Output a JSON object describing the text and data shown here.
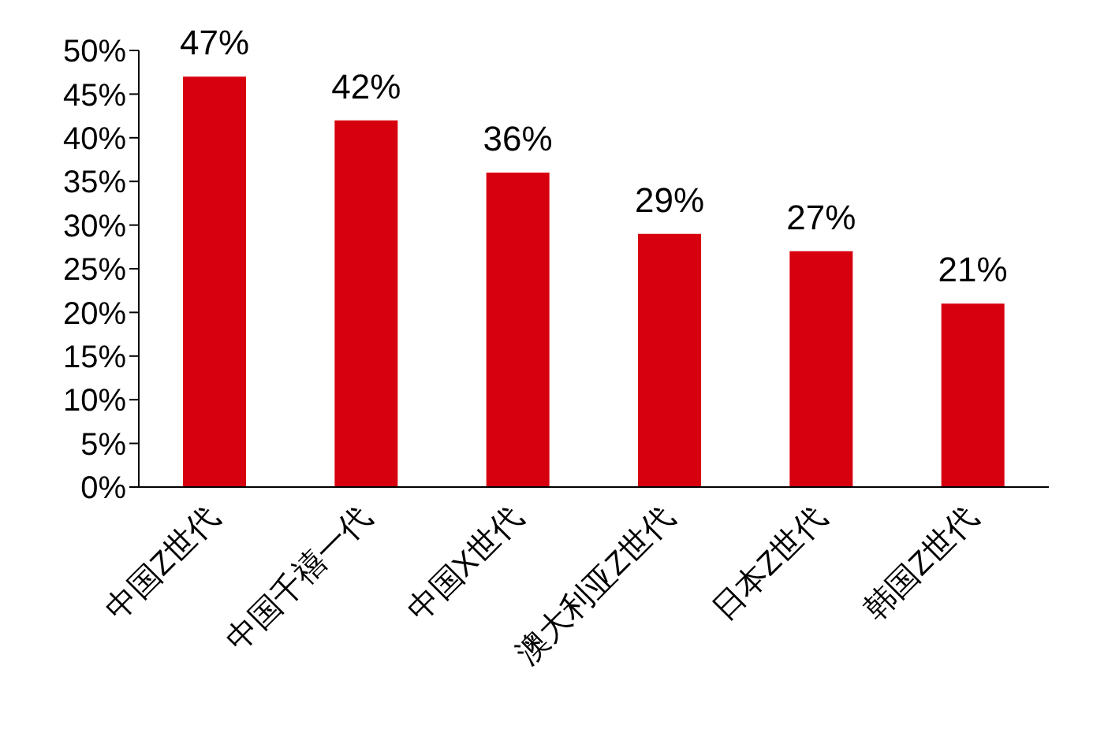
{
  "chart_data": {
    "type": "bar",
    "categories": [
      "中国Z世代",
      "中国千禧一代",
      "中国X世代",
      "澳大利亚Z世代",
      "日本Z世代",
      "韩国Z世代"
    ],
    "values": [
      47,
      42,
      36,
      29,
      27,
      21
    ],
    "color": "#d7000f",
    "value_labels": [
      "47%",
      "42%",
      "36%",
      "29%",
      "27%",
      "21%"
    ],
    "ylim": [
      0,
      50
    ],
    "yticks": [
      {
        "value": 0,
        "label": "0%"
      },
      {
        "value": 5,
        "label": "5%"
      },
      {
        "value": 10,
        "label": "10%"
      },
      {
        "value": 15,
        "label": "15%"
      },
      {
        "value": 20,
        "label": "20%"
      },
      {
        "value": 25,
        "label": "25%"
      },
      {
        "value": 30,
        "label": "30%"
      },
      {
        "value": 35,
        "label": "35%"
      },
      {
        "value": 40,
        "label": "40%"
      },
      {
        "value": 45,
        "label": "45%"
      },
      {
        "value": 50,
        "label": "50%"
      }
    ],
    "grid": false,
    "legend": false
  }
}
